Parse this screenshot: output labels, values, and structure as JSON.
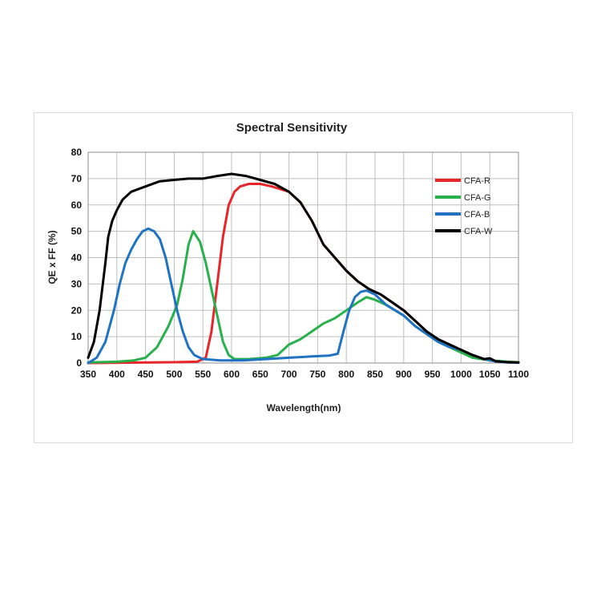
{
  "chart_data": {
    "type": "line",
    "title": "Spectral Sensitivity",
    "xlabel": "Wavelength(nm)",
    "ylabel": "QE x FF (%)",
    "xlim": [
      350,
      1100
    ],
    "ylim": [
      0,
      80
    ],
    "xticks": [
      350,
      400,
      450,
      500,
      550,
      600,
      650,
      700,
      750,
      800,
      850,
      900,
      950,
      1000,
      1050,
      1100
    ],
    "yticks": [
      0,
      10,
      20,
      30,
      40,
      50,
      60,
      70,
      80
    ],
    "grid": true,
    "legend_position": "top-right",
    "series": [
      {
        "name": "CFA-R",
        "color": "#e8262a",
        "points": [
          [
            350,
            0
          ],
          [
            500,
            0.3
          ],
          [
            540,
            0.5
          ],
          [
            555,
            2
          ],
          [
            565,
            12
          ],
          [
            575,
            30
          ],
          [
            585,
            48
          ],
          [
            595,
            60
          ],
          [
            605,
            65
          ],
          [
            615,
            67
          ],
          [
            630,
            68
          ],
          [
            650,
            68
          ],
          [
            670,
            67
          ],
          [
            700,
            65
          ],
          [
            720,
            61
          ],
          [
            740,
            54
          ],
          [
            760,
            45
          ],
          [
            780,
            40
          ],
          [
            800,
            35
          ],
          [
            820,
            31
          ],
          [
            840,
            28
          ],
          [
            860,
            26
          ],
          [
            880,
            23
          ],
          [
            900,
            20
          ],
          [
            920,
            16
          ],
          [
            940,
            12
          ],
          [
            960,
            9
          ],
          [
            980,
            7
          ],
          [
            1000,
            5
          ],
          [
            1020,
            3
          ],
          [
            1040,
            1.5
          ],
          [
            1060,
            0.7
          ],
          [
            1080,
            0.3
          ],
          [
            1100,
            0.2
          ]
        ]
      },
      {
        "name": "CFA-G",
        "color": "#27b04b",
        "points": [
          [
            350,
            0.2
          ],
          [
            400,
            0.5
          ],
          [
            430,
            1
          ],
          [
            450,
            2
          ],
          [
            470,
            6
          ],
          [
            490,
            14
          ],
          [
            505,
            22
          ],
          [
            515,
            32
          ],
          [
            525,
            45
          ],
          [
            533,
            50
          ],
          [
            545,
            46
          ],
          [
            555,
            38
          ],
          [
            565,
            28
          ],
          [
            575,
            18
          ],
          [
            585,
            8
          ],
          [
            595,
            3
          ],
          [
            605,
            1.5
          ],
          [
            630,
            1.5
          ],
          [
            660,
            2
          ],
          [
            680,
            3
          ],
          [
            700,
            7
          ],
          [
            720,
            9
          ],
          [
            740,
            12
          ],
          [
            760,
            15
          ],
          [
            780,
            17
          ],
          [
            800,
            20
          ],
          [
            820,
            23
          ],
          [
            835,
            25
          ],
          [
            850,
            24
          ],
          [
            870,
            22
          ],
          [
            900,
            18
          ],
          [
            920,
            14
          ],
          [
            940,
            11
          ],
          [
            960,
            8
          ],
          [
            980,
            6
          ],
          [
            1000,
            4
          ],
          [
            1020,
            2
          ],
          [
            1050,
            1
          ],
          [
            1100,
            0.2
          ]
        ]
      },
      {
        "name": "CFA-B",
        "color": "#1f73c2",
        "points": [
          [
            350,
            0
          ],
          [
            365,
            2
          ],
          [
            380,
            8
          ],
          [
            395,
            20
          ],
          [
            405,
            30
          ],
          [
            415,
            38
          ],
          [
            425,
            43
          ],
          [
            435,
            47
          ],
          [
            445,
            50
          ],
          [
            455,
            51
          ],
          [
            465,
            50
          ],
          [
            475,
            47
          ],
          [
            485,
            40
          ],
          [
            495,
            30
          ],
          [
            505,
            20
          ],
          [
            515,
            12
          ],
          [
            525,
            6
          ],
          [
            535,
            3
          ],
          [
            550,
            1.5
          ],
          [
            580,
            1
          ],
          [
            620,
            1
          ],
          [
            660,
            1.5
          ],
          [
            700,
            2
          ],
          [
            740,
            2.5
          ],
          [
            770,
            2.8
          ],
          [
            785,
            3.5
          ],
          [
            795,
            12
          ],
          [
            805,
            20
          ],
          [
            815,
            25
          ],
          [
            825,
            27
          ],
          [
            835,
            27.5
          ],
          [
            850,
            26
          ],
          [
            870,
            22
          ],
          [
            900,
            18
          ],
          [
            920,
            14
          ],
          [
            940,
            11
          ],
          [
            960,
            8
          ],
          [
            980,
            6
          ],
          [
            1000,
            5
          ],
          [
            1020,
            3
          ],
          [
            1040,
            1.5
          ],
          [
            1060,
            0.6
          ],
          [
            1080,
            0.2
          ],
          [
            1100,
            0.1
          ]
        ]
      },
      {
        "name": "CFA-W",
        "color": "#000000",
        "points": [
          [
            350,
            2
          ],
          [
            360,
            8
          ],
          [
            370,
            20
          ],
          [
            380,
            38
          ],
          [
            385,
            48
          ],
          [
            392,
            54
          ],
          [
            400,
            58
          ],
          [
            410,
            62
          ],
          [
            425,
            65
          ],
          [
            450,
            67
          ],
          [
            475,
            69
          ],
          [
            500,
            69.5
          ],
          [
            525,
            70
          ],
          [
            550,
            70
          ],
          [
            575,
            71
          ],
          [
            600,
            71.8
          ],
          [
            625,
            71
          ],
          [
            650,
            69.5
          ],
          [
            675,
            68
          ],
          [
            700,
            65
          ],
          [
            720,
            61
          ],
          [
            740,
            54
          ],
          [
            760,
            45
          ],
          [
            780,
            40
          ],
          [
            800,
            35
          ],
          [
            820,
            31
          ],
          [
            840,
            28
          ],
          [
            860,
            26
          ],
          [
            880,
            23
          ],
          [
            900,
            20
          ],
          [
            920,
            16
          ],
          [
            940,
            12
          ],
          [
            960,
            9
          ],
          [
            980,
            7
          ],
          [
            1000,
            5
          ],
          [
            1020,
            3
          ],
          [
            1040,
            1.5
          ],
          [
            1050,
            1.8
          ],
          [
            1060,
            0.7
          ],
          [
            1080,
            0.3
          ],
          [
            1100,
            0.2
          ]
        ]
      }
    ]
  }
}
